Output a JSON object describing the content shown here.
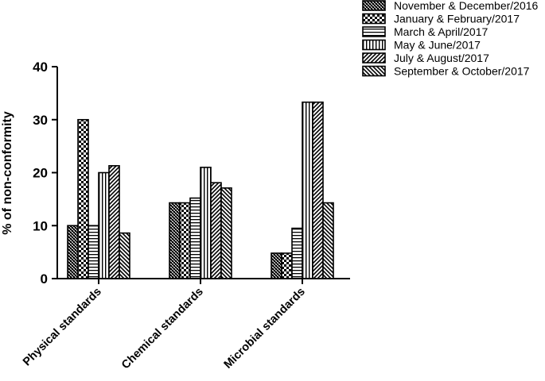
{
  "chart_data": {
    "type": "bar",
    "ylabel": "% of non-conformity",
    "xlabel": "",
    "ylim": [
      0,
      40
    ],
    "yticks": [
      0,
      10,
      20,
      30,
      40
    ],
    "grid": false,
    "legend_position": "top-right",
    "categories": [
      "Physical standards",
      "Chemical standards",
      "Microbial standards"
    ],
    "series": [
      {
        "name": "November & December/2016",
        "pattern": "crosshatch-dense",
        "values": [
          10,
          14.3,
          4.8
        ]
      },
      {
        "name": "January & February/2017",
        "pattern": "checker",
        "values": [
          30,
          14.3,
          4.8
        ]
      },
      {
        "name": "March & April/2017",
        "pattern": "horizontal-lines",
        "values": [
          10,
          15.2,
          9.5
        ]
      },
      {
        "name": "May & June/2017",
        "pattern": "vertical-lines",
        "values": [
          20,
          21,
          33.3
        ]
      },
      {
        "name": "July & August/2017",
        "pattern": "diagonal-up",
        "values": [
          21.3,
          18.1,
          33.3
        ]
      },
      {
        "name": "September & October/2017",
        "pattern": "diagonal-down",
        "values": [
          8.6,
          17.1,
          14.3
        ]
      }
    ]
  }
}
